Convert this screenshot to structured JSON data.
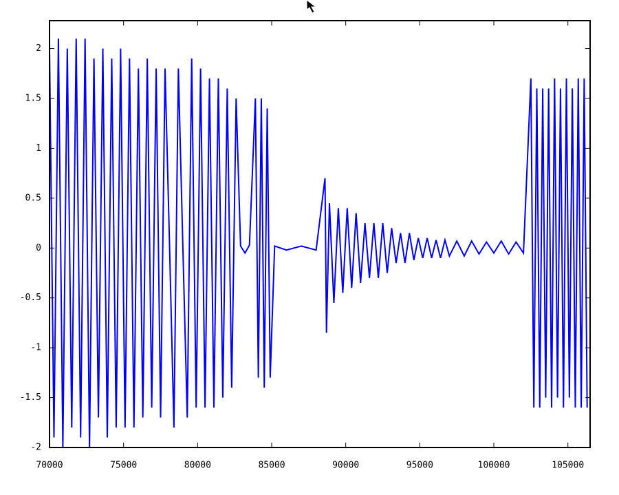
{
  "chart_data": {
    "type": "line",
    "color": "#0000ff",
    "xlim": [
      70000,
      106500
    ],
    "ylim": [
      -2,
      2.28
    ],
    "xticks": [
      70000,
      75000,
      80000,
      85000,
      90000,
      95000,
      100000,
      105000
    ],
    "yticks": [
      -2,
      -1.5,
      -1,
      -0.5,
      0,
      0.5,
      1,
      1.5,
      2
    ],
    "x": [
      70000,
      70300,
      70600,
      70900,
      71200,
      71500,
      71800,
      72100,
      72400,
      72700,
      73000,
      73300,
      73600,
      73900,
      74200,
      74500,
      74800,
      75100,
      75400,
      75700,
      76000,
      76300,
      76600,
      76900,
      77200,
      77500,
      77800,
      78100,
      78400,
      78700,
      79000,
      79300,
      79600,
      79900,
      80200,
      80500,
      80800,
      81100,
      81400,
      81700,
      82000,
      82300,
      82600,
      82900,
      83200,
      83500,
      83900,
      84100,
      84300,
      84500,
      84700,
      84900,
      85200,
      86000,
      87000,
      88000,
      88600,
      88700,
      88900,
      89200,
      89500,
      89800,
      90100,
      90400,
      90700,
      91000,
      91300,
      91600,
      91900,
      92200,
      92500,
      92800,
      93100,
      93400,
      93700,
      94000,
      94300,
      94600,
      94900,
      95200,
      95500,
      95800,
      96100,
      96400,
      96700,
      97000,
      97500,
      98000,
      98500,
      99000,
      99500,
      100000,
      100500,
      101000,
      101500,
      102000,
      102500,
      102700,
      102900,
      103100,
      103300,
      103500,
      103700,
      103900,
      104100,
      104300,
      104500,
      104700,
      104900,
      105100,
      105300,
      105500,
      105700,
      105900,
      106100,
      106300
    ],
    "values": [
      2.0,
      -1.9,
      2.1,
      -2.0,
      2.0,
      -1.8,
      2.1,
      -1.9,
      2.1,
      -2.0,
      1.9,
      -1.7,
      2.0,
      -1.9,
      1.9,
      -1.8,
      2.0,
      -1.8,
      1.9,
      -1.8,
      1.8,
      -1.7,
      1.9,
      -1.6,
      1.8,
      -1.7,
      1.8,
      0.05,
      -1.8,
      1.8,
      0.03,
      -1.7,
      1.9,
      -1.6,
      1.8,
      -1.6,
      1.7,
      -1.6,
      1.7,
      -1.5,
      1.6,
      -1.4,
      1.5,
      0.02,
      -0.05,
      0.03,
      1.5,
      -1.3,
      1.5,
      -1.4,
      1.4,
      -1.3,
      0.02,
      -0.02,
      0.02,
      -0.02,
      0.7,
      -0.85,
      0.45,
      -0.55,
      0.4,
      -0.45,
      0.4,
      -0.4,
      0.35,
      -0.35,
      0.25,
      -0.3,
      0.25,
      -0.3,
      0.25,
      -0.25,
      0.2,
      -0.15,
      0.15,
      -0.15,
      0.15,
      -0.12,
      0.1,
      -0.1,
      0.1,
      -0.1,
      0.08,
      -0.1,
      0.08,
      -0.08,
      0.07,
      -0.08,
      0.07,
      -0.06,
      0.06,
      -0.05,
      0.07,
      -0.06,
      0.06,
      -0.05,
      1.7,
      -1.6,
      1.6,
      -1.6,
      1.6,
      -1.5,
      1.6,
      -1.6,
      1.7,
      -1.5,
      1.6,
      -1.6,
      1.7,
      -1.5,
      1.6,
      -1.6,
      1.7,
      -1.6,
      1.7,
      -1.6
    ]
  }
}
